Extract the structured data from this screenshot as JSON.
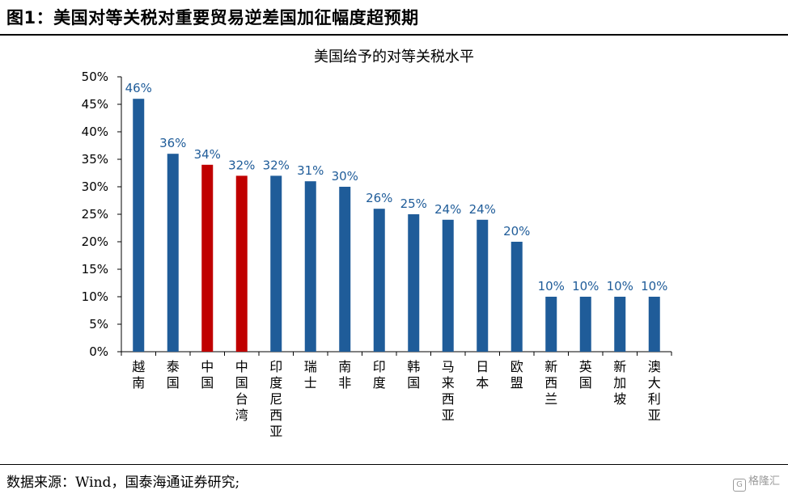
{
  "figure_title": "图1：美国对等关税对重要贸易逆差国加征幅度超预期",
  "source_text": "数据来源：Wind，国泰海通证券研究;",
  "watermark": {
    "icon": "gelonghui-logo-icon",
    "text": "格隆汇"
  },
  "colors": {
    "bar_default": "#1F5C99",
    "bar_highlight": "#C00000",
    "label": "#1F5C99"
  },
  "chart_data": {
    "type": "bar",
    "title": "美国给予的对等关税水平",
    "xlabel": "",
    "ylabel": "",
    "ylim": [
      0,
      50
    ],
    "y_ticks": [
      "0%",
      "5%",
      "10%",
      "15%",
      "20%",
      "25%",
      "30%",
      "35%",
      "40%",
      "45%",
      "50%"
    ],
    "categories": [
      "越南",
      "泰国",
      "中国",
      "中国台湾",
      "印度尼西亚",
      "瑞士",
      "南非",
      "印度",
      "韩国",
      "马来西亚",
      "日本",
      "欧盟",
      "新西兰",
      "英国",
      "新加坡",
      "澳大利亚"
    ],
    "values": [
      46,
      36,
      34,
      32,
      32,
      31,
      30,
      26,
      25,
      24,
      24,
      20,
      10,
      10,
      10,
      10
    ],
    "data_labels": [
      "46%",
      "36%",
      "34%",
      "32%",
      "32%",
      "31%",
      "30%",
      "26%",
      "25%",
      "24%",
      "24%",
      "20%",
      "10%",
      "10%",
      "10%",
      "10%"
    ],
    "highlight": [
      false,
      false,
      true,
      true,
      false,
      false,
      false,
      false,
      false,
      false,
      false,
      false,
      false,
      false,
      false,
      false
    ],
    "grid": false,
    "legend": "none"
  }
}
